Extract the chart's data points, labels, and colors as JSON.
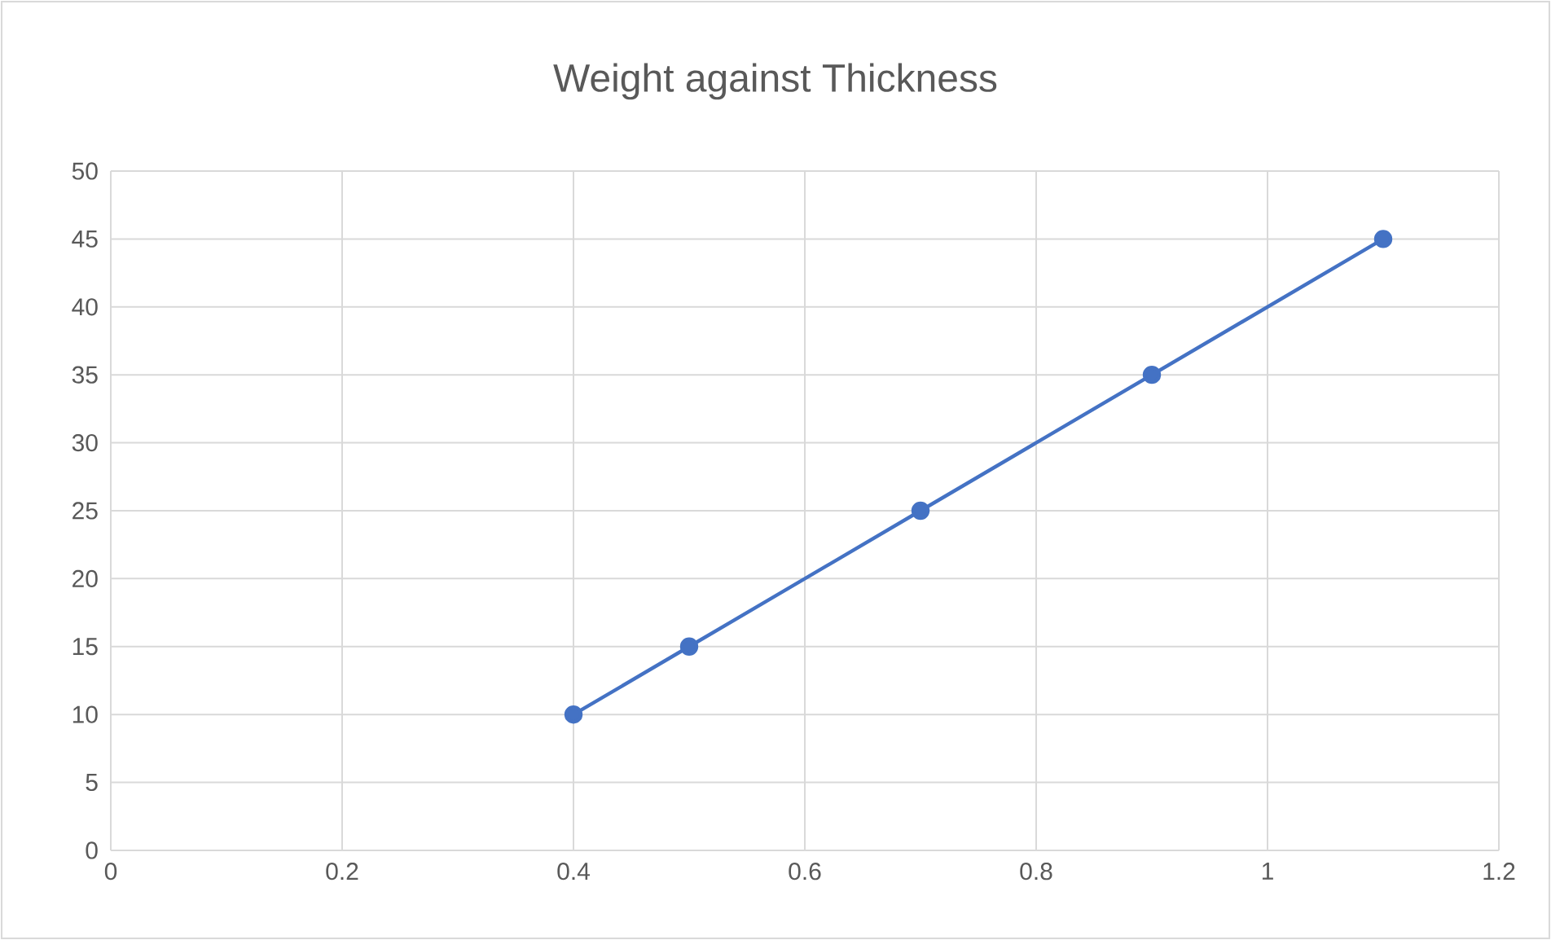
{
  "chart_data": {
    "type": "line",
    "title": "Weight against Thickness",
    "x": [
      0.4,
      0.5,
      0.7,
      0.9,
      1.1
    ],
    "series": [
      {
        "color": "#4472c4",
        "values": [
          10,
          15,
          25,
          35,
          45
        ]
      }
    ],
    "xlim": [
      0,
      1.2
    ],
    "xticks": [
      0,
      0.2,
      0.4,
      0.6,
      0.8,
      1,
      1.2
    ],
    "ylim": [
      0,
      50
    ],
    "yticks": [
      0,
      5,
      10,
      15,
      20,
      25,
      30,
      35,
      40,
      45,
      50
    ],
    "grid": true,
    "marker": "circle",
    "line_style": "solid"
  }
}
